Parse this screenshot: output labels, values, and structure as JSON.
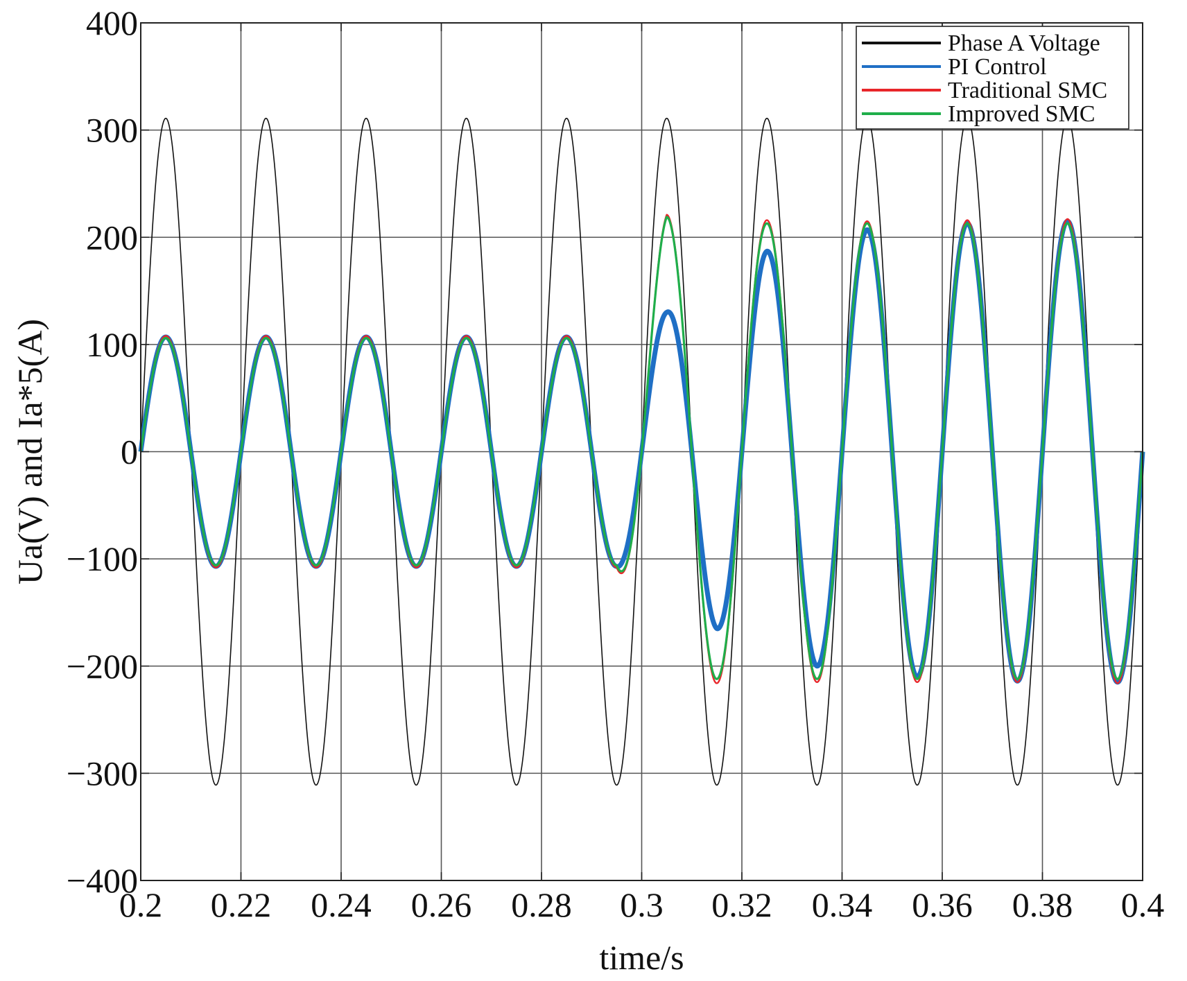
{
  "chart_data": {
    "type": "line",
    "xlabel": "time/s",
    "ylabel": "Ua(V) and Ia*5(A)",
    "xlim": [
      0.2,
      0.4
    ],
    "ylim": [
      -400,
      400
    ],
    "xticks": [
      0.2,
      0.22,
      0.24,
      0.26,
      0.28,
      0.3,
      0.32,
      0.34,
      0.36,
      0.38,
      0.4
    ],
    "xtick_labels": [
      "0.2",
      "0.22",
      "0.24",
      "0.26",
      "0.28",
      "0.3",
      "0.32",
      "0.34",
      "0.36",
      "0.38",
      "0.4"
    ],
    "yticks": [
      -400,
      -300,
      -200,
      -100,
      0,
      100,
      200,
      300,
      400
    ],
    "ytick_labels": [
      "−400",
      "−300",
      "−200",
      "−100",
      "0",
      "100",
      "200",
      "300",
      "400"
    ],
    "grid": true,
    "legend_position": "top-right",
    "frequency_hz": 50,
    "series": [
      {
        "name": "Phase A Voltage",
        "color": "#111111",
        "x": [
          0.2,
          0.205,
          0.215,
          0.225,
          0.235,
          0.245,
          0.255,
          0.265,
          0.275,
          0.285,
          0.295,
          0.305,
          0.315,
          0.325,
          0.335,
          0.345,
          0.355,
          0.365,
          0.375,
          0.385,
          0.395,
          0.4
        ],
        "y": [
          0,
          311,
          -311,
          311,
          -311,
          311,
          -311,
          311,
          -311,
          311,
          -311,
          311,
          -311,
          311,
          -311,
          311,
          -311,
          311,
          -311,
          311,
          -311,
          0
        ]
      },
      {
        "name": "PI Control",
        "color": "#1f6fc5",
        "x": [
          0.2,
          0.205,
          0.215,
          0.225,
          0.235,
          0.245,
          0.255,
          0.265,
          0.275,
          0.285,
          0.295,
          0.305,
          0.315,
          0.325,
          0.335,
          0.345,
          0.355,
          0.365,
          0.375,
          0.385,
          0.395,
          0.4
        ],
        "y": [
          0,
          107,
          -107,
          107,
          -107,
          107,
          -107,
          107,
          -107,
          107,
          -107,
          130,
          -165,
          187,
          -200,
          207,
          -210,
          213,
          -214,
          215,
          -215,
          0
        ]
      },
      {
        "name": "Traditional SMC",
        "color": "#e8262a",
        "x": [
          0.2,
          0.205,
          0.215,
          0.225,
          0.235,
          0.245,
          0.255,
          0.265,
          0.275,
          0.285,
          0.295,
          0.305,
          0.315,
          0.325,
          0.335,
          0.345,
          0.355,
          0.365,
          0.375,
          0.385,
          0.395,
          0.4
        ],
        "y": [
          0,
          108,
          -108,
          108,
          -108,
          108,
          -108,
          108,
          -108,
          108,
          -108,
          221,
          -216,
          216,
          -215,
          215,
          -215,
          216,
          -215,
          217,
          -216,
          0
        ]
      },
      {
        "name": "Improved  SMC",
        "color": "#1fae4a",
        "x": [
          0.2,
          0.205,
          0.215,
          0.225,
          0.235,
          0.245,
          0.255,
          0.265,
          0.275,
          0.285,
          0.295,
          0.305,
          0.315,
          0.325,
          0.335,
          0.345,
          0.355,
          0.365,
          0.375,
          0.385,
          0.395,
          0.4
        ],
        "y": [
          0,
          106,
          -106,
          106,
          -106,
          106,
          -106,
          106,
          -106,
          106,
          -106,
          219,
          -212,
          213,
          -212,
          213,
          -212,
          213,
          -212,
          213,
          -212,
          0
        ]
      }
    ]
  }
}
